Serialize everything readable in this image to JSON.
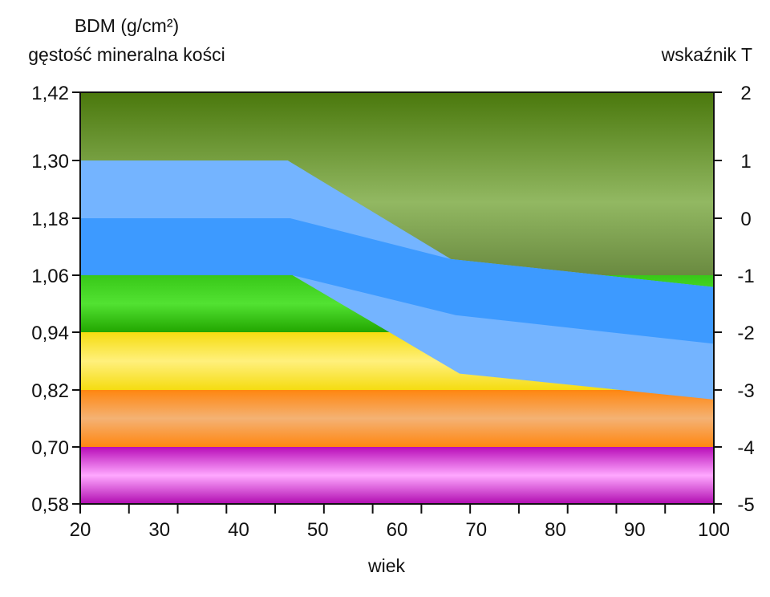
{
  "chart_data": {
    "type": "area",
    "title_line1": "BDM (g/cm²)",
    "title_line2": "gęstość mineralna kości",
    "ylabel_right": "wskaźnik T",
    "xlabel": "wiek",
    "x_ticks": [
      "20",
      "30",
      "40",
      "50",
      "60",
      "70",
      "80",
      "90",
      "100"
    ],
    "xlim": [
      20,
      100
    ],
    "y_ticks": [
      "1,42",
      "1,30",
      "1,18",
      "1,06",
      "0,94",
      "0,82",
      "0,70",
      "0,58"
    ],
    "y_tick_values": [
      1.42,
      1.3,
      1.18,
      1.06,
      0.94,
      0.82,
      0.7,
      0.58
    ],
    "y_right_ticks": [
      "2",
      "1",
      "0",
      "-1",
      "-2",
      "-3",
      "-4",
      "-5"
    ],
    "ylim": [
      0.58,
      1.42
    ],
    "background_bands": [
      {
        "from": 1.06,
        "to": 1.42,
        "colors": [
          "#4a780c",
          "#92b862",
          "#6a8a40"
        ]
      },
      {
        "from": 0.94,
        "to": 1.06,
        "colors": [
          "#38c818",
          "#52e232",
          "#22a600"
        ]
      },
      {
        "from": 0.82,
        "to": 0.94,
        "colors": [
          "#f5dc10",
          "#fff07c",
          "#f5dc10"
        ]
      },
      {
        "from": 0.7,
        "to": 0.82,
        "colors": [
          "#ff8610",
          "#f4b274",
          "#ff8610"
        ]
      },
      {
        "from": 0.58,
        "to": 0.7,
        "colors": [
          "#b80cb8",
          "#ffa8ff",
          "#b00cb0"
        ]
      }
    ],
    "ribbon": {
      "light_color": "#74b4ff",
      "dark_color": "#3d9aff",
      "top": [
        [
          20,
          1.3
        ],
        [
          46.2,
          1.3
        ],
        [
          66.8,
          1.094
        ],
        [
          100,
          1.035
        ]
      ],
      "middle": [
        [
          20,
          1.18
        ],
        [
          46.5,
          1.18
        ],
        [
          67.4,
          0.976
        ],
        [
          100,
          0.916
        ]
      ],
      "bottom": [
        [
          20,
          1.06
        ],
        [
          46.8,
          1.06
        ],
        [
          67.9,
          0.854
        ],
        [
          100,
          0.8
        ]
      ],
      "dark_upper": [
        [
          20,
          1.18
        ],
        [
          46.5,
          1.18
        ],
        [
          66.8,
          1.094
        ],
        [
          100,
          1.035
        ]
      ],
      "dark_lower": [
        [
          20,
          1.06
        ],
        [
          46.8,
          1.06
        ],
        [
          67.4,
          0.976
        ],
        [
          100,
          0.916
        ]
      ]
    },
    "grid": false
  }
}
